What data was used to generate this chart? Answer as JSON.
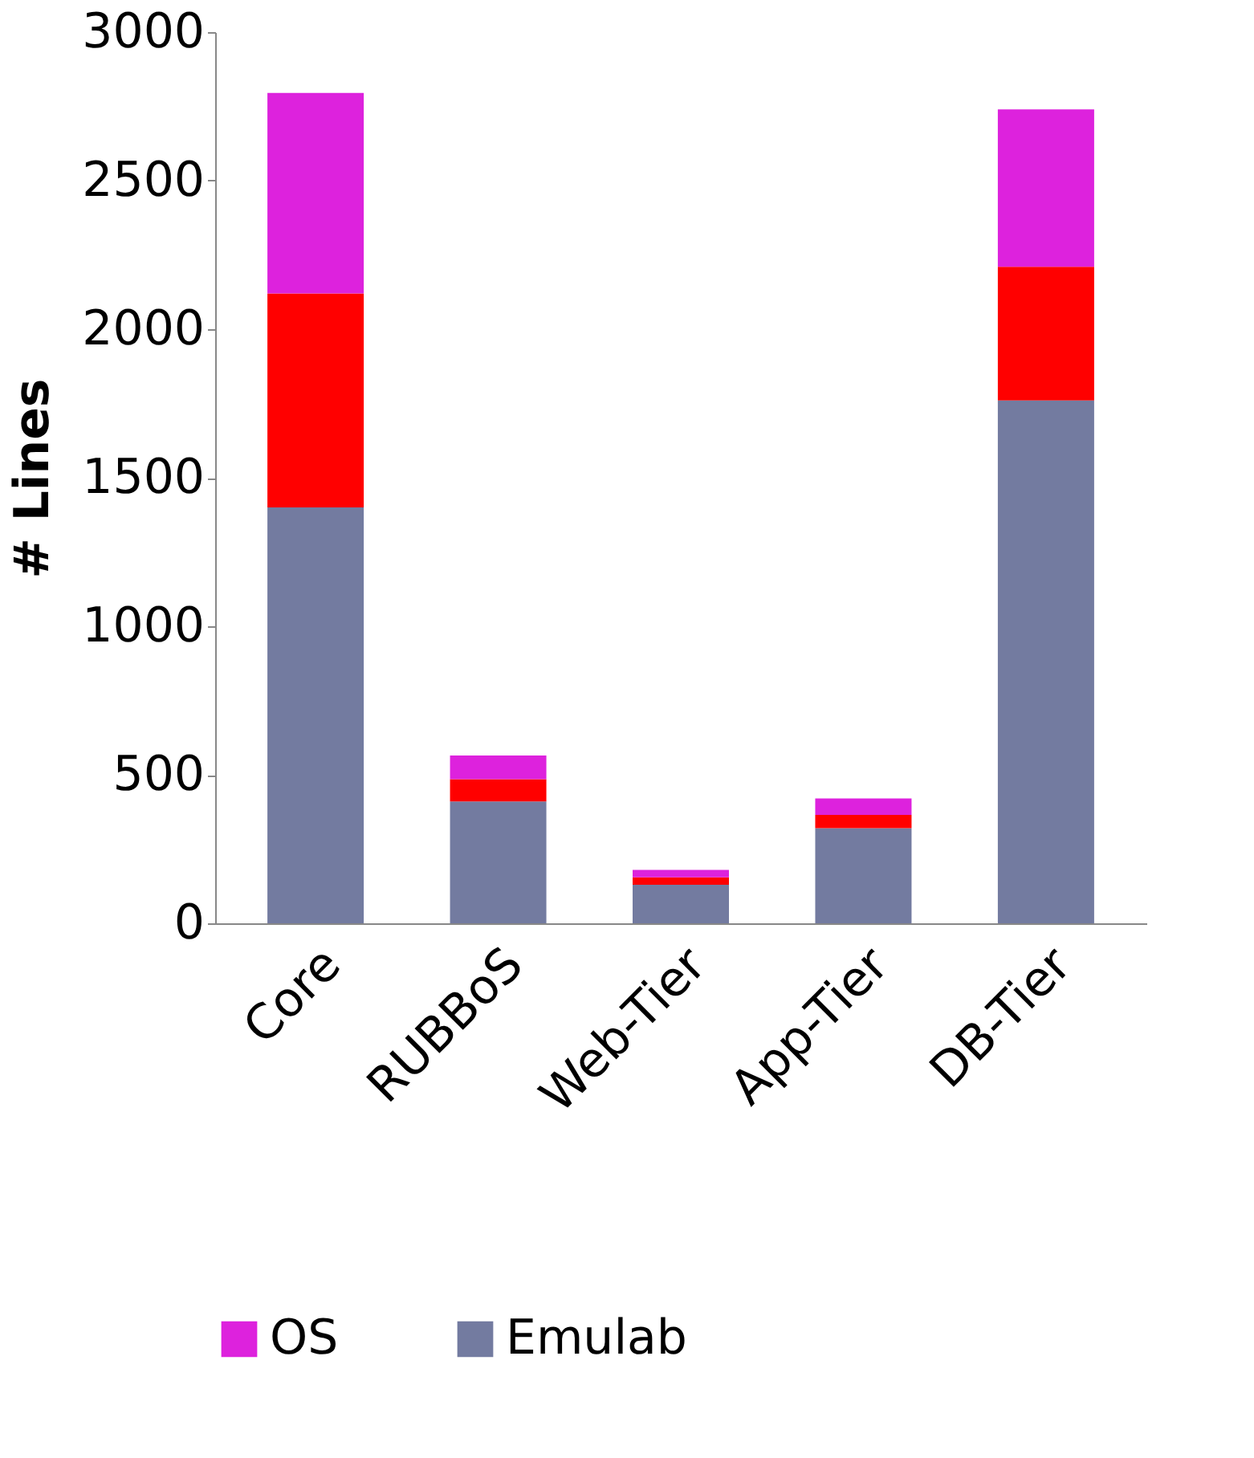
{
  "chart_data": {
    "type": "bar",
    "stacked": true,
    "ylabel": "# Lines",
    "categories": [
      "Core",
      "RUBBoS",
      "Web-Tier",
      "App-Tier",
      "DB-Tier"
    ],
    "series": [
      {
        "name": "Emulab",
        "color": "#737ba0",
        "values": [
          1400,
          410,
          130,
          320,
          1760
        ]
      },
      {
        "color": "#ff0000",
        "values": [
          720,
          75,
          25,
          45,
          450
        ]
      },
      {
        "name": "OS",
        "color": "#dd22dd",
        "values": [
          675,
          80,
          25,
          55,
          530
        ]
      }
    ],
    "ylim": [
      0,
      3000
    ],
    "yticks": [
      0,
      500,
      1000,
      1500,
      2000,
      2500,
      3000
    ],
    "grid": false,
    "legend": "bottom"
  }
}
